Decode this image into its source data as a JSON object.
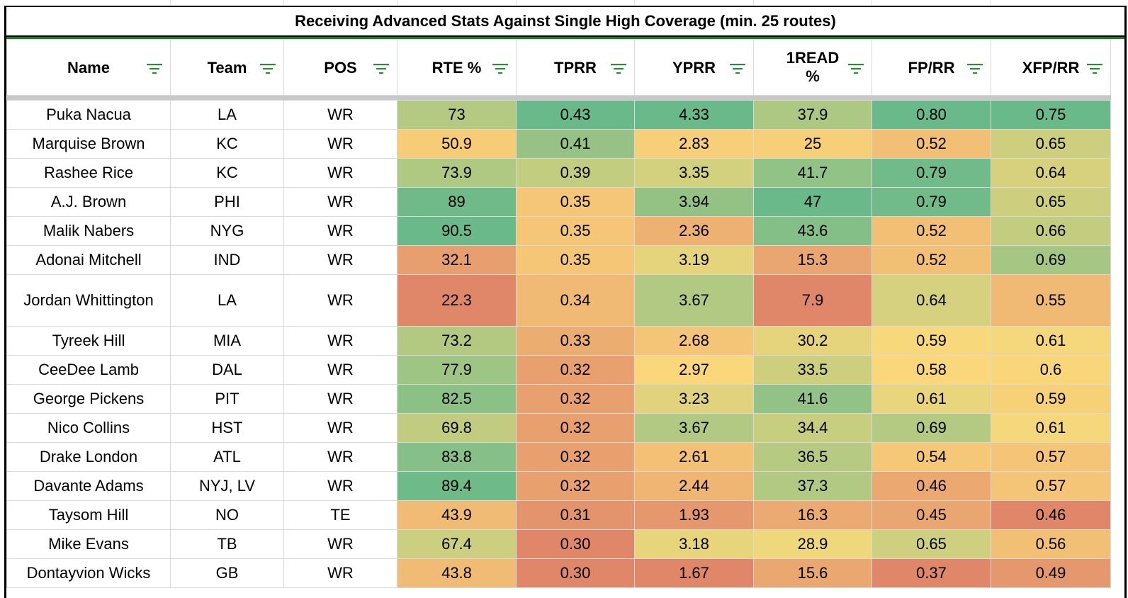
{
  "title": "Receiving Advanced Stats Against Single High Coverage (min. 25 routes)",
  "columns": [
    "Name",
    "Team",
    "POS",
    "RTE %",
    "TPRR",
    "YPRR",
    "1READ %",
    "FP/RR",
    "XFP/RR"
  ],
  "icons": {
    "filter": "filter-icon"
  },
  "colors": {
    "filter_icon": "#2e8b3a",
    "header_separator": "#1e7a1e",
    "scale_low": "#e0876a",
    "scale_mid": "#fad97a",
    "scale_high": "#6ab98a"
  },
  "rows": [
    {
      "name": "Puka Nacua",
      "team": "LA",
      "pos": "WR",
      "rte": "73",
      "tprr": "0.43",
      "yprr": "4.33",
      "read1": "37.9",
      "fprr": "0.80",
      "xfprr": "0.75"
    },
    {
      "name": "Marquise Brown",
      "team": "KC",
      "pos": "WR",
      "rte": "50.9",
      "tprr": "0.41",
      "yprr": "2.83",
      "read1": "25",
      "fprr": "0.52",
      "xfprr": "0.65"
    },
    {
      "name": "Rashee Rice",
      "team": "KC",
      "pos": "WR",
      "rte": "73.9",
      "tprr": "0.39",
      "yprr": "3.35",
      "read1": "41.7",
      "fprr": "0.79",
      "xfprr": "0.64"
    },
    {
      "name": "A.J. Brown",
      "team": "PHI",
      "pos": "WR",
      "rte": "89",
      "tprr": "0.35",
      "yprr": "3.94",
      "read1": "47",
      "fprr": "0.79",
      "xfprr": "0.65"
    },
    {
      "name": "Malik Nabers",
      "team": "NYG",
      "pos": "WR",
      "rte": "90.5",
      "tprr": "0.35",
      "yprr": "2.36",
      "read1": "43.6",
      "fprr": "0.52",
      "xfprr": "0.66"
    },
    {
      "name": "Adonai Mitchell",
      "team": "IND",
      "pos": "WR",
      "rte": "32.1",
      "tprr": "0.35",
      "yprr": "3.19",
      "read1": "15.3",
      "fprr": "0.52",
      "xfprr": "0.69"
    },
    {
      "name": "Jordan Whittington",
      "team": "LA",
      "pos": "WR",
      "rte": "22.3",
      "tprr": "0.34",
      "yprr": "3.67",
      "read1": "7.9",
      "fprr": "0.64",
      "xfprr": "0.55"
    },
    {
      "name": "Tyreek Hill",
      "team": "MIA",
      "pos": "WR",
      "rte": "73.2",
      "tprr": "0.33",
      "yprr": "2.68",
      "read1": "30.2",
      "fprr": "0.59",
      "xfprr": "0.61"
    },
    {
      "name": "CeeDee Lamb",
      "team": "DAL",
      "pos": "WR",
      "rte": "77.9",
      "tprr": "0.32",
      "yprr": "2.97",
      "read1": "33.5",
      "fprr": "0.58",
      "xfprr": "0.6"
    },
    {
      "name": "George Pickens",
      "team": "PIT",
      "pos": "WR",
      "rte": "82.5",
      "tprr": "0.32",
      "yprr": "3.23",
      "read1": "41.6",
      "fprr": "0.61",
      "xfprr": "0.59"
    },
    {
      "name": "Nico Collins",
      "team": "HST",
      "pos": "WR",
      "rte": "69.8",
      "tprr": "0.32",
      "yprr": "3.67",
      "read1": "34.4",
      "fprr": "0.69",
      "xfprr": "0.61"
    },
    {
      "name": "Drake London",
      "team": "ATL",
      "pos": "WR",
      "rte": "83.8",
      "tprr": "0.32",
      "yprr": "2.61",
      "read1": "36.5",
      "fprr": "0.54",
      "xfprr": "0.57"
    },
    {
      "name": "Davante Adams",
      "team": "NYJ, LV",
      "pos": "WR",
      "rte": "89.4",
      "tprr": "0.32",
      "yprr": "2.44",
      "read1": "37.3",
      "fprr": "0.46",
      "xfprr": "0.57"
    },
    {
      "name": "Taysom Hill",
      "team": "NO",
      "pos": "TE",
      "rte": "43.9",
      "tprr": "0.31",
      "yprr": "1.93",
      "read1": "16.3",
      "fprr": "0.45",
      "xfprr": "0.46"
    },
    {
      "name": "Mike Evans",
      "team": "TB",
      "pos": "WR",
      "rte": "67.4",
      "tprr": "0.30",
      "yprr": "3.18",
      "read1": "28.9",
      "fprr": "0.65",
      "xfprr": "0.56"
    },
    {
      "name": "Dontayvion Wicks",
      "team": "GB",
      "pos": "WR",
      "rte": "43.8",
      "tprr": "0.30",
      "yprr": "1.67",
      "read1": "15.6",
      "fprr": "0.37",
      "xfprr": "0.49"
    }
  ]
}
